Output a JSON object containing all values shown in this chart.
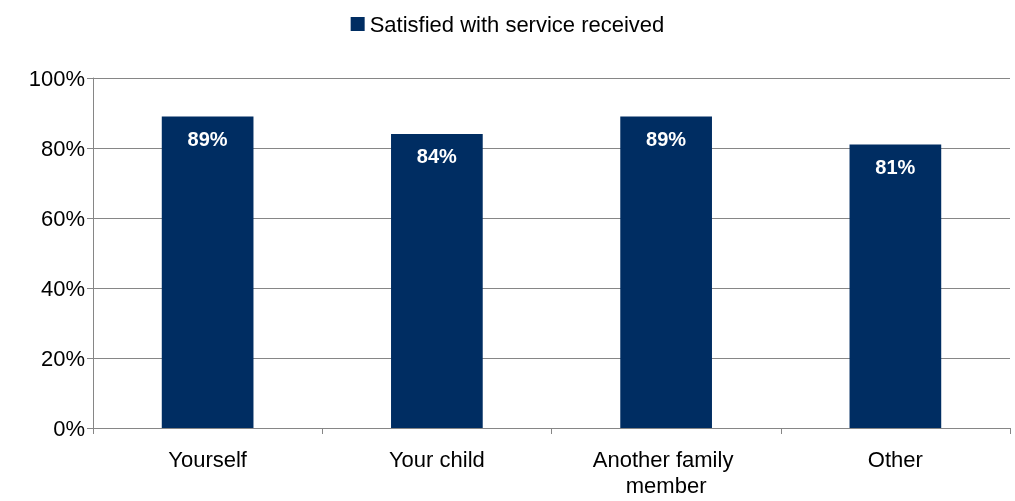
{
  "chart_data": {
    "type": "bar",
    "categories": [
      "Yourself",
      "Your child",
      "Another family member",
      "Other"
    ],
    "series": [
      {
        "name": "Satisfied with service received",
        "color": "#002d62",
        "values": [
          89,
          84,
          89,
          81
        ],
        "value_labels": [
          "89%",
          "84%",
          "89%",
          "81%"
        ]
      }
    ],
    "ylim": [
      0,
      100
    ],
    "yticks": [
      {
        "value": 0,
        "label": "0%"
      },
      {
        "value": 20,
        "label": "20%"
      },
      {
        "value": 40,
        "label": "40%"
      },
      {
        "value": 60,
        "label": "60%"
      },
      {
        "value": 80,
        "label": "80%"
      },
      {
        "value": 100,
        "label": "100%"
      }
    ],
    "grid": "y",
    "legend": "top"
  }
}
